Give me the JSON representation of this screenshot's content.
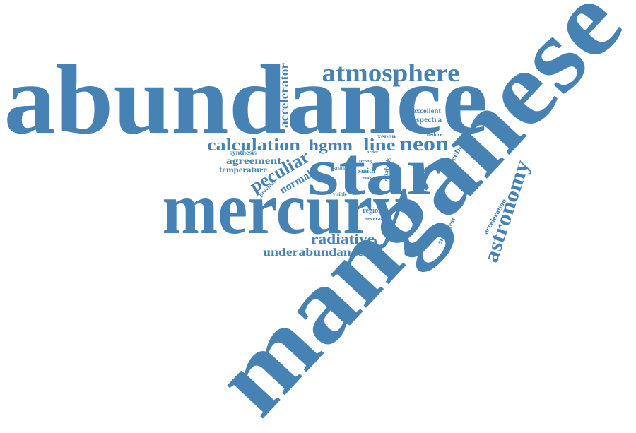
{
  "words": [
    "abundance",
    "manganese",
    "star",
    "mercury",
    "atmosphere",
    "astronomy",
    "calculation",
    "hgmn",
    "line",
    "neon",
    "peculiar",
    "accelerator",
    "radiative",
    "underabundances",
    "agreement",
    "temperature",
    "synthesis",
    "normal",
    "excellent",
    "spectra",
    "xenon",
    "deduce",
    "echelle",
    "smith",
    "analysis",
    "order",
    "strong",
    "stellar",
    "previous",
    "weak",
    "visible",
    "region",
    "several",
    "sample",
    "strongest",
    "acceleration",
    "self"
  ]
}
